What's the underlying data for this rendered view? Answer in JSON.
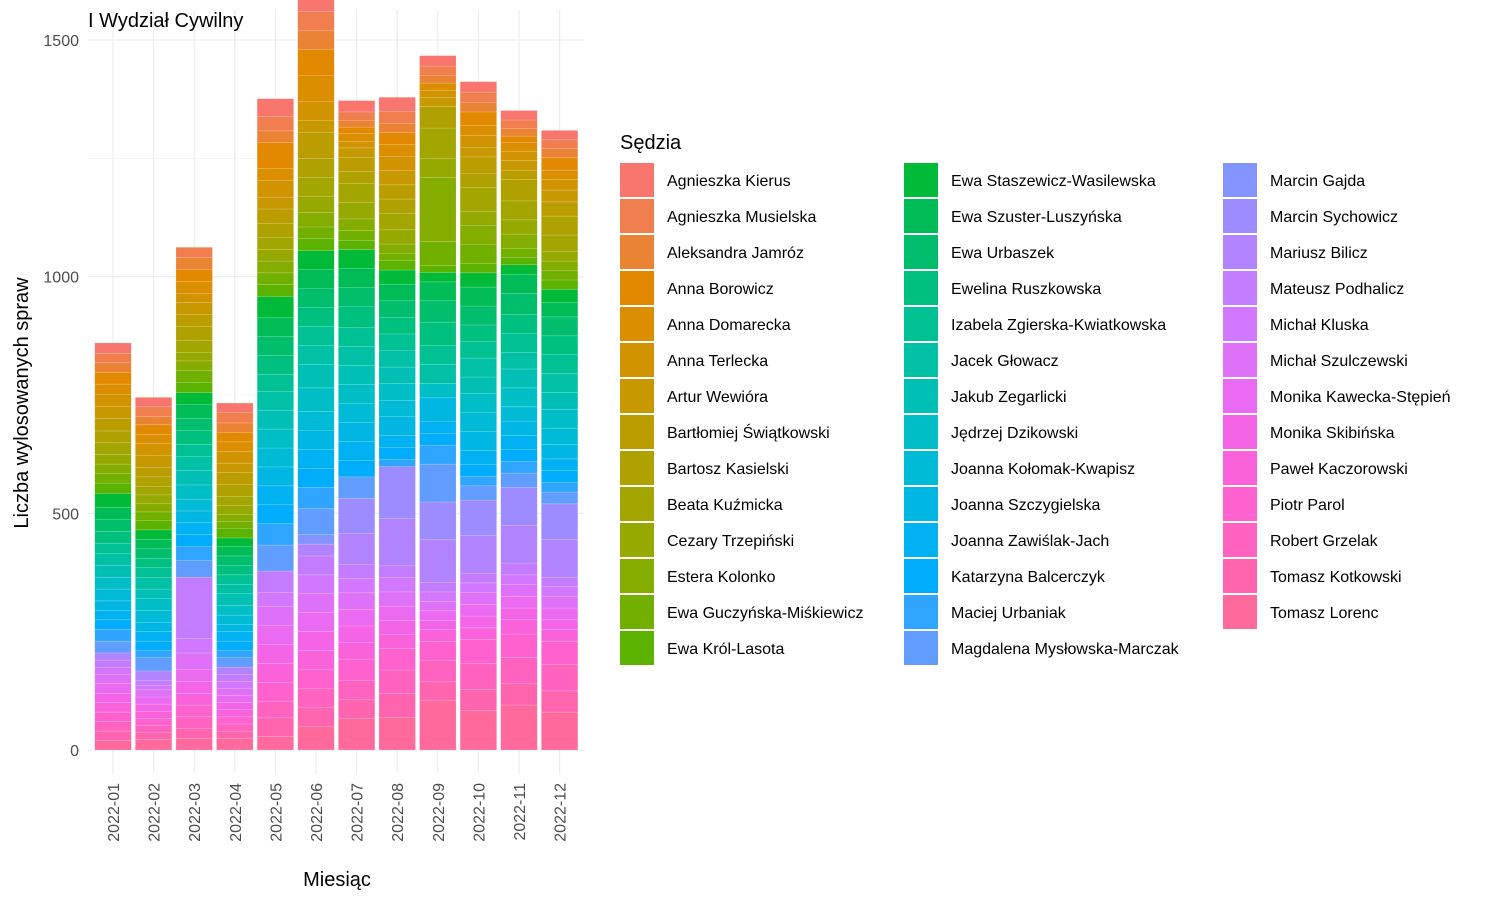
{
  "chart_data": {
    "type": "bar",
    "stacked": true,
    "title": "I Wydział Cywilny",
    "xlabel": "Miesiąc",
    "ylabel": "Liczba wylosowanych spraw",
    "ylim": [
      0,
      1500
    ],
    "yticks": [
      0,
      500,
      1000,
      1500
    ],
    "grid": true,
    "legend_title": "Sędzia",
    "legend_position": "right",
    "categories": [
      "2022-01",
      "2022-02",
      "2022-03",
      "2022-04",
      "2022-05",
      "2022-06",
      "2022-07",
      "2022-08",
      "2022-09",
      "2022-10",
      "2022-11",
      "2022-12"
    ],
    "series": [
      {
        "name": "Agnieszka Kierus",
        "color": "#F8766D",
        "values": [
          22,
          20,
          0,
          20,
          38,
          40,
          24,
          30,
          22,
          22,
          20,
          20
        ]
      },
      {
        "name": "Agnieszka Musielska",
        "color": "#F17E4E",
        "values": [
          20,
          20,
          22,
          22,
          30,
          40,
          18,
          25,
          20,
          22,
          18,
          18
        ]
      },
      {
        "name": "Aleksandra Jamróz",
        "color": "#EB8335",
        "values": [
          20,
          18,
          25,
          20,
          25,
          40,
          14,
          20,
          16,
          20,
          16,
          20
        ]
      },
      {
        "name": "Anna Borowicz",
        "color": "#E38900",
        "values": [
          25,
          20,
          25,
          20,
          55,
          55,
          14,
          25,
          0,
          28,
          14,
          26
        ]
      },
      {
        "name": "Anna Domarecka",
        "color": "#DA8E00",
        "values": [
          22,
          20,
          25,
          20,
          25,
          55,
          16,
          25,
          15,
          22,
          18,
          20
        ]
      },
      {
        "name": "Anna Terlecka",
        "color": "#D19300",
        "values": [
          25,
          25,
          20,
          25,
          35,
          40,
          14,
          30,
          15,
          25,
          20,
          22
        ]
      },
      {
        "name": "Artur Wewióra",
        "color": "#C79800",
        "values": [
          26,
          25,
          25,
          20,
          25,
          25,
          20,
          30,
          20,
          20,
          20,
          25
        ]
      },
      {
        "name": "Bartłomiej Świątkowski",
        "color": "#BB9D00",
        "values": [
          26,
          20,
          25,
          25,
          30,
          55,
          30,
          30,
          0,
          35,
          20,
          30
        ]
      },
      {
        "name": "Bartosz Kasielski",
        "color": "#AFA100",
        "values": [
          25,
          20,
          30,
          25,
          30,
          40,
          25,
          30,
          45,
          30,
          45,
          40
        ]
      },
      {
        "name": "Beata Kuźmicka",
        "color": "#A3A500",
        "values": [
          25,
          18,
          25,
          20,
          25,
          40,
          40,
          35,
          65,
          50,
          40,
          35
        ]
      },
      {
        "name": "Cezary Trzepiński",
        "color": "#95A900",
        "values": [
          20,
          18,
          18,
          18,
          25,
          35,
          35,
          30,
          40,
          30,
          30,
          20
        ]
      },
      {
        "name": "Estera Kolonko",
        "color": "#85AD00",
        "values": [
          20,
          18,
          20,
          15,
          25,
          30,
          25,
          20,
          135,
          40,
          30,
          20
        ]
      },
      {
        "name": "Ewa Guczyńska-Miśkiewicz",
        "color": "#72B000",
        "values": [
          20,
          18,
          25,
          15,
          25,
          25,
          20,
          15,
          50,
          40,
          20,
          20
        ]
      },
      {
        "name": "Ewa Król-Lasota",
        "color": "#5BB300",
        "values": [
          22,
          20,
          22,
          20,
          25,
          25,
          20,
          20,
          15,
          20,
          15,
          20
        ]
      },
      {
        "name": "Ewa Staszewicz-Wasilewska",
        "color": "#00BA38",
        "values": [
          30,
          20,
          25,
          18,
          45,
          40,
          40,
          30,
          20,
          30,
          20,
          28
        ]
      },
      {
        "name": "Ewa Szuster-Luszyńska",
        "color": "#00BC56",
        "values": [
          25,
          20,
          30,
          20,
          40,
          40,
          40,
          35,
          40,
          40,
          40,
          30
        ]
      },
      {
        "name": "Ewa Urbaszek",
        "color": "#00BE6C",
        "values": [
          25,
          20,
          25,
          20,
          40,
          40,
          40,
          35,
          45,
          40,
          45,
          40
        ]
      },
      {
        "name": "Ewelina Ruszkowska",
        "color": "#00C080",
        "values": [
          25,
          20,
          30,
          20,
          40,
          40,
          45,
          35,
          50,
          35,
          40,
          40
        ]
      },
      {
        "name": "Izabela Zgierska-Kwiatkowska",
        "color": "#00C193",
        "values": [
          22,
          20,
          25,
          20,
          35,
          40,
          40,
          35,
          40,
          35,
          40,
          40
        ]
      },
      {
        "name": "Jacek Głowacz",
        "color": "#00C1A5",
        "values": [
          25,
          25,
          30,
          20,
          40,
          40,
          40,
          35,
          40,
          40,
          35,
          40
        ]
      },
      {
        "name": "Jakub Zegarlicki",
        "color": "#00C0B6",
        "values": [
          25,
          20,
          30,
          25,
          40,
          50,
          40,
          35,
          0,
          35,
          40,
          35
        ]
      },
      {
        "name": "Jędrzej Dzikowski",
        "color": "#00BEC6",
        "values": [
          25,
          25,
          30,
          20,
          40,
          50,
          40,
          35,
          30,
          40,
          40,
          40
        ]
      },
      {
        "name": "Joanna Kołomak-Kwapisz",
        "color": "#00BBD6",
        "values": [
          25,
          25,
          25,
          20,
          40,
          40,
          40,
          35,
          0,
          40,
          30,
          35
        ]
      },
      {
        "name": "Joanna Szczygielska",
        "color": "#00B7E4",
        "values": [
          20,
          20,
          25,
          15,
          40,
          40,
          40,
          40,
          50,
          40,
          30,
          30
        ]
      },
      {
        "name": "Joanna Zawiślak-Jach",
        "color": "#00B2F1",
        "values": [
          20,
          20,
          25,
          20,
          40,
          40,
          40,
          25,
          25,
          30,
          30,
          25
        ]
      },
      {
        "name": "Katarzyna Balcerczyk",
        "color": "#00ACFC",
        "values": [
          20,
          20,
          25,
          20,
          40,
          40,
          35,
          25,
          25,
          25,
          25,
          25
        ]
      },
      {
        "name": "Maciej Urbaniak",
        "color": "#2FA5FF",
        "values": [
          25,
          15,
          30,
          15,
          45,
          45,
          0,
          15,
          40,
          20,
          25,
          20
        ]
      },
      {
        "name": "Magdalena Mysłowska-Marczak",
        "color": "#619CFF",
        "values": [
          25,
          28,
          35,
          20,
          55,
          55,
          45,
          0,
          80,
          30,
          30,
          25
        ]
      },
      {
        "name": "Marcin Gajda",
        "color": "#8394FF",
        "values": [
          0,
          0,
          0,
          0,
          0,
          20,
          0,
          0,
          0,
          0,
          0,
          0
        ]
      },
      {
        "name": "Marcin Sychowicz",
        "color": "#9D8CFF",
        "values": [
          0,
          0,
          0,
          0,
          0,
          0,
          75,
          110,
          80,
          75,
          80,
          75
        ]
      },
      {
        "name": "Mariusz Bilicz",
        "color": "#B283FF",
        "values": [
          15,
          20,
          0,
          15,
          0,
          25,
          65,
          100,
          90,
          80,
          80,
          80
        ]
      },
      {
        "name": "Mateusz Podhalicz",
        "color": "#C37BFF",
        "values": [
          15,
          10,
          130,
          15,
          45,
          40,
          30,
          25,
          20,
          20,
          25,
          20
        ]
      },
      {
        "name": "Michał Kluska",
        "color": "#D277FF",
        "values": [
          15,
          10,
          30,
          15,
          30,
          40,
          30,
          30,
          20,
          20,
          20,
          20
        ]
      },
      {
        "name": "Michał Szulczewski",
        "color": "#DF70F8",
        "values": [
          20,
          15,
          35,
          15,
          40,
          40,
          35,
          30,
          20,
          25,
          25,
          25
        ]
      },
      {
        "name": "Monika Kawecka-Stępień",
        "color": "#EA6AF1",
        "values": [
          20,
          15,
          25,
          15,
          40,
          40,
          35,
          30,
          20,
          25,
          25,
          25
        ]
      },
      {
        "name": "Monika Skibińska",
        "color": "#F365E6",
        "values": [
          20,
          15,
          25,
          15,
          40,
          40,
          35,
          30,
          20,
          25,
          25,
          20
        ]
      },
      {
        "name": "Paweł Kaczorowski",
        "color": "#FA62DB",
        "values": [
          20,
          15,
          25,
          15,
          40,
          40,
          35,
          30,
          25,
          25,
          30,
          25
        ]
      },
      {
        "name": "Piotr Parol",
        "color": "#FF61CE",
        "values": [
          20,
          15,
          25,
          15,
          40,
          40,
          45,
          45,
          40,
          50,
          50,
          50
        ]
      },
      {
        "name": "Robert Grzelak",
        "color": "#FF62BF",
        "values": [
          20,
          15,
          25,
          15,
          35,
          40,
          40,
          50,
          45,
          55,
          55,
          55
        ]
      },
      {
        "name": "Tomasz Kotkowski",
        "color": "#FF65AF",
        "values": [
          20,
          15,
          20,
          15,
          40,
          40,
          40,
          50,
          40,
          45,
          45,
          45
        ]
      },
      {
        "name": "Tomasz Lorenc",
        "color": "#FF699C",
        "values": [
          20,
          22,
          25,
          25,
          28,
          50,
          67,
          69,
          104,
          83,
          95,
          80
        ]
      }
    ]
  }
}
